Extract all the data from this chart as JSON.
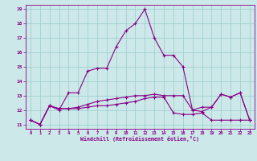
{
  "xlabel": "Windchill (Refroidissement éolien,°C)",
  "bg_color": "#cce8e8",
  "line_color": "#880088",
  "grid_color": "#99cccc",
  "xmin": 0,
  "xmax": 23,
  "ymin": 11,
  "ymax": 19,
  "yticks": [
    11,
    12,
    13,
    14,
    15,
    16,
    17,
    18,
    19
  ],
  "xticks": [
    0,
    1,
    2,
    3,
    4,
    5,
    6,
    7,
    8,
    9,
    10,
    11,
    12,
    13,
    14,
    15,
    16,
    17,
    18,
    19,
    20,
    21,
    22,
    23
  ],
  "series1": [
    11.3,
    11.0,
    12.3,
    12.0,
    13.2,
    13.2,
    14.7,
    14.9,
    14.9,
    16.4,
    17.5,
    18.0,
    19.0,
    17.0,
    15.8,
    15.8,
    15.0,
    12.0,
    11.9,
    12.2,
    13.1,
    12.9,
    13.2,
    11.3
  ],
  "series2": [
    11.3,
    11.0,
    12.3,
    12.1,
    12.1,
    12.1,
    12.2,
    12.3,
    12.3,
    12.4,
    12.5,
    12.6,
    12.8,
    12.9,
    12.9,
    11.8,
    11.7,
    11.7,
    11.8,
    11.3,
    11.3,
    11.3,
    11.3,
    11.3
  ],
  "series3": [
    11.3,
    11.0,
    12.3,
    12.1,
    12.1,
    12.2,
    12.4,
    12.6,
    12.7,
    12.8,
    12.9,
    13.0,
    13.0,
    13.1,
    13.0,
    13.0,
    13.0,
    12.0,
    12.2,
    12.2,
    13.1,
    12.9,
    13.2,
    11.3
  ]
}
